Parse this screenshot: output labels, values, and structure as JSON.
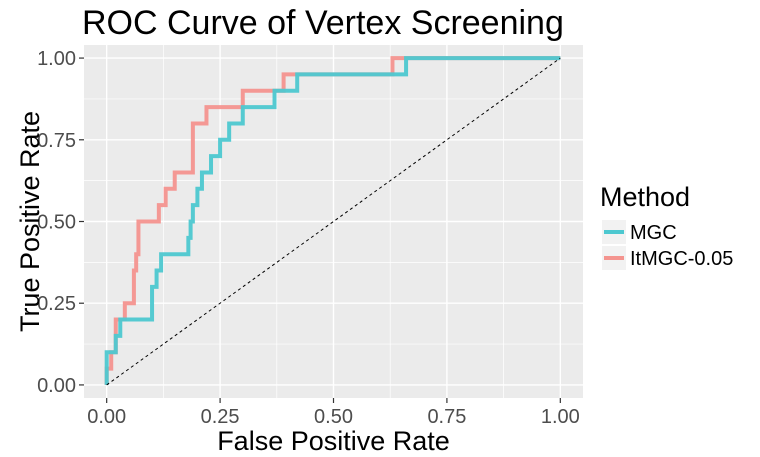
{
  "chart_data": {
    "type": "line",
    "title": "ROC Curve of Vertex Screening",
    "xlabel": "False Positive Rate",
    "ylabel": "True Positive Rate",
    "xlim": [
      0,
      1
    ],
    "ylim": [
      0,
      1
    ],
    "x_ticks": [
      0,
      0.25,
      0.5,
      0.75,
      1
    ],
    "y_ticks": [
      0,
      0.25,
      0.5,
      0.75,
      1
    ],
    "x_tick_labels": [
      "0.00",
      "0.25",
      "0.50",
      "0.75",
      "1.00"
    ],
    "y_tick_labels": [
      "0.00",
      "0.25",
      "0.50",
      "0.75",
      "1.00"
    ],
    "grid": true,
    "background": "#ebebeb",
    "legend": {
      "title": "Method",
      "position": "right"
    },
    "diagonal_reference": {
      "x": [
        0,
        1
      ],
      "y": [
        0,
        1
      ],
      "style": "dashed"
    },
    "series": [
      {
        "name": "MGC",
        "color": "#4dc8d0",
        "x": [
          0,
          0,
          0.02,
          0.02,
          0.03,
          0.03,
          0.1,
          0.1,
          0.11,
          0.11,
          0.12,
          0.12,
          0.18,
          0.18,
          0.185,
          0.185,
          0.19,
          0.19,
          0.2,
          0.2,
          0.21,
          0.21,
          0.23,
          0.23,
          0.25,
          0.25,
          0.27,
          0.27,
          0.3,
          0.3,
          0.37,
          0.37,
          0.42,
          0.42,
          0.49,
          0.49,
          0.66,
          0.66,
          1
        ],
        "y": [
          0,
          0.1,
          0.1,
          0.15,
          0.15,
          0.2,
          0.2,
          0.3,
          0.3,
          0.35,
          0.35,
          0.4,
          0.4,
          0.45,
          0.45,
          0.5,
          0.5,
          0.55,
          0.55,
          0.6,
          0.6,
          0.65,
          0.65,
          0.7,
          0.7,
          0.75,
          0.75,
          0.8,
          0.8,
          0.85,
          0.85,
          0.9,
          0.9,
          0.95,
          0.95,
          0.95,
          0.95,
          1,
          1
        ]
      },
      {
        "name": "ItMGC-0.05",
        "color": "#f4948f",
        "x": [
          0,
          0,
          0.01,
          0.01,
          0.02,
          0.02,
          0.04,
          0.04,
          0.06,
          0.06,
          0.065,
          0.065,
          0.07,
          0.07,
          0.115,
          0.115,
          0.13,
          0.13,
          0.14,
          0.14,
          0.15,
          0.15,
          0.19,
          0.19,
          0.22,
          0.22,
          0.3,
          0.3,
          0.39,
          0.39,
          0.47,
          0.47,
          0.63,
          0.63,
          0.65,
          0.65,
          1
        ],
        "y": [
          0,
          0.05,
          0.05,
          0.1,
          0.1,
          0.2,
          0.2,
          0.25,
          0.25,
          0.35,
          0.35,
          0.4,
          0.4,
          0.5,
          0.5,
          0.55,
          0.55,
          0.6,
          0.6,
          0.6,
          0.6,
          0.65,
          0.65,
          0.8,
          0.8,
          0.85,
          0.85,
          0.9,
          0.9,
          0.95,
          0.95,
          0.95,
          0.95,
          1,
          1,
          1,
          1
        ]
      }
    ]
  }
}
